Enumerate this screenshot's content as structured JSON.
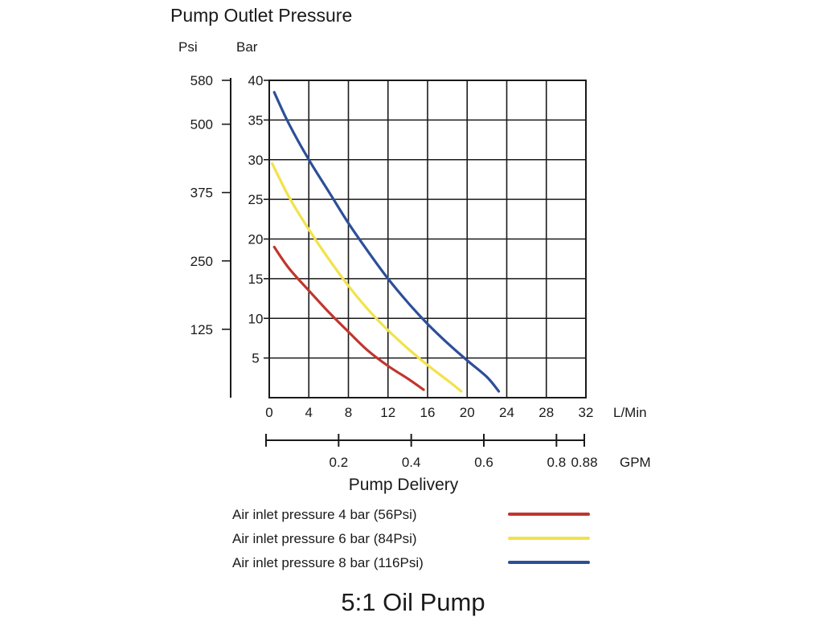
{
  "chart_data": {
    "type": "line",
    "title": "Pump Outlet Pressure",
    "bottom_title": "5:1 Oil Pump",
    "y_units_left": "Psi",
    "y_units_right": "Bar",
    "xlabel": "Pump Delivery",
    "x_unit_primary": "L/Min",
    "x_unit_secondary": "GPM",
    "xlim": [
      0,
      32
    ],
    "ylim": [
      0,
      40
    ],
    "grid": true,
    "legend_position": "bottom",
    "x_ticks": [
      0,
      4,
      8,
      12,
      16,
      20,
      24,
      28,
      32
    ],
    "bar_ticks": [
      5,
      10,
      15,
      20,
      25,
      30,
      35,
      40
    ],
    "psi_ticks": [
      {
        "label": "125",
        "bar": 8.62
      },
      {
        "label": "250",
        "bar": 17.24
      },
      {
        "label": "375",
        "bar": 25.86
      },
      {
        "label": "500",
        "bar": 34.47
      },
      {
        "label": "580",
        "bar": 40
      }
    ],
    "gpm_ticks": [
      {
        "label": "0.2",
        "lpm": 7.3
      },
      {
        "label": "0.4",
        "lpm": 14.6
      },
      {
        "label": "0.6",
        "lpm": 21.9
      },
      {
        "label": "0.8",
        "lpm": 29.2
      },
      {
        "label": "0.88",
        "lpm": 32
      }
    ],
    "series": [
      {
        "name": "Air inlet pressure 4 bar (56Psi)",
        "color": "#c0362c",
        "x": [
          0.5,
          2,
          4,
          6,
          8,
          10,
          12,
          14,
          15.6
        ],
        "y": [
          19,
          16.3,
          13.5,
          10.8,
          8.3,
          5.9,
          4.0,
          2.4,
          1.0
        ]
      },
      {
        "name": "Air inlet pressure 6 bar (84Psi)",
        "color": "#f2e24a",
        "x": [
          0.3,
          2,
          4,
          6,
          8,
          10,
          12,
          14,
          16,
          18,
          19.4
        ],
        "y": [
          29.5,
          25.3,
          21.2,
          17.5,
          14.1,
          11.1,
          8.5,
          6.2,
          4.1,
          2.2,
          0.8
        ]
      },
      {
        "name": "Air inlet pressure 8 bar (116Psi)",
        "color": "#2d4f98",
        "x": [
          0.5,
          2,
          4,
          6,
          8,
          10,
          12,
          14,
          16,
          18,
          20,
          22,
          23.2
        ],
        "y": [
          38.5,
          34.5,
          30.0,
          26.0,
          22.0,
          18.4,
          15.0,
          12.0,
          9.3,
          6.9,
          4.7,
          2.6,
          0.8
        ]
      }
    ]
  }
}
